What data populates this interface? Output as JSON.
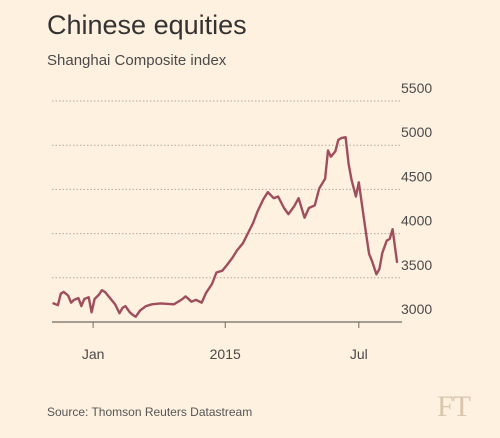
{
  "header": {
    "title": "Chinese equities",
    "subtitle": "Shanghai Composite index"
  },
  "footer": {
    "source": "Source: Thomson Reuters Datastream",
    "logo": "FT"
  },
  "colors": {
    "background": "#fff1e0",
    "line": "#9e4e5c",
    "grid": "#b5a99c",
    "text": "#333333"
  },
  "chart_data": {
    "type": "line",
    "title": "Chinese equities",
    "subtitle": "Shanghai Composite index",
    "xlabel": "",
    "ylabel": "",
    "ylim": [
      3000,
      5500
    ],
    "xlim": [
      "2014-12-04",
      "2015-07-27"
    ],
    "yticks": [
      3000,
      3500,
      4000,
      4500,
      5000,
      5500
    ],
    "yticklabels": [
      "3000",
      "3500",
      "4000",
      "4500",
      "5000",
      "5500"
    ],
    "xticks": [
      "2015-01-01",
      "2015-04-01",
      "2015-07-01"
    ],
    "xticklabels": [
      "Jan",
      "2015",
      "Jul"
    ],
    "grid": true,
    "y_axis_position": "right",
    "series": [
      {
        "name": "",
        "color": "#9e4e5c",
        "x": [
          "2014-12-05",
          "2014-12-08",
          "2014-12-10",
          "2014-12-12",
          "2014-12-15",
          "2014-12-17",
          "2014-12-19",
          "2014-12-22",
          "2014-12-24",
          "2014-12-26",
          "2014-12-29",
          "2014-12-31",
          "2015-01-02",
          "2015-01-05",
          "2015-01-07",
          "2015-01-09",
          "2015-01-12",
          "2015-01-14",
          "2015-01-16",
          "2015-01-19",
          "2015-01-21",
          "2015-01-23",
          "2015-01-26",
          "2015-01-28",
          "2015-01-30",
          "2015-02-02",
          "2015-02-06",
          "2015-02-10",
          "2015-02-16",
          "2015-02-25",
          "2015-03-02",
          "2015-03-05",
          "2015-03-09",
          "2015-03-12",
          "2015-03-16",
          "2015-03-19",
          "2015-03-23",
          "2015-03-26",
          "2015-03-30",
          "2015-04-02",
          "2015-04-06",
          "2015-04-09",
          "2015-04-13",
          "2015-04-16",
          "2015-04-20",
          "2015-04-23",
          "2015-04-27",
          "2015-04-30",
          "2015-05-04",
          "2015-05-07",
          "2015-05-11",
          "2015-05-14",
          "2015-05-18",
          "2015-05-21",
          "2015-05-25",
          "2015-05-28",
          "2015-06-01",
          "2015-06-04",
          "2015-06-08",
          "2015-06-10",
          "2015-06-12",
          "2015-06-15",
          "2015-06-17",
          "2015-06-19",
          "2015-06-22",
          "2015-06-24",
          "2015-06-26",
          "2015-06-29",
          "2015-07-01",
          "2015-07-03",
          "2015-07-06",
          "2015-07-08",
          "2015-07-10",
          "2015-07-13",
          "2015-07-15",
          "2015-07-17",
          "2015-07-20",
          "2015-07-22",
          "2015-07-24",
          "2015-07-27"
        ],
        "values": [
          3210,
          3190,
          3320,
          3340,
          3300,
          3220,
          3250,
          3270,
          3180,
          3260,
          3280,
          3110,
          3260,
          3310,
          3360,
          3340,
          3280,
          3240,
          3200,
          3100,
          3160,
          3180,
          3110,
          3080,
          3060,
          3130,
          3180,
          3200,
          3210,
          3200,
          3250,
          3290,
          3230,
          3250,
          3220,
          3330,
          3430,
          3560,
          3580,
          3640,
          3730,
          3810,
          3890,
          3990,
          4120,
          4250,
          4390,
          4470,
          4400,
          4420,
          4290,
          4220,
          4310,
          4400,
          4180,
          4290,
          4320,
          4510,
          4620,
          4940,
          4870,
          4930,
          5060,
          5080,
          5090,
          4790,
          4610,
          4420,
          4580,
          4340,
          3990,
          3770,
          3690,
          3540,
          3600,
          3780,
          3920,
          3940,
          4050,
          3680
        ]
      }
    ]
  }
}
